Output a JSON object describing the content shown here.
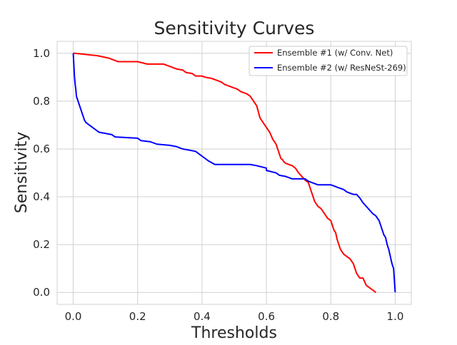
{
  "chart_data": {
    "type": "line",
    "title": "Sensitivity Curves",
    "xlabel": "Thresholds",
    "ylabel": "Sensitivity",
    "xlim": [
      -0.05,
      1.05
    ],
    "ylim": [
      -0.05,
      1.05
    ],
    "xticks": [
      0.0,
      0.2,
      0.4,
      0.6,
      0.8,
      1.0
    ],
    "xtick_labels": [
      "0.0",
      "0.2",
      "0.4",
      "0.6",
      "0.8",
      "1.0"
    ],
    "yticks": [
      0.0,
      0.2,
      0.4,
      0.6,
      0.8,
      1.0
    ],
    "ytick_labels": [
      "0.0",
      "0.2",
      "0.4",
      "0.6",
      "0.8",
      "1.0"
    ],
    "grid": true,
    "legend_position": "top-right",
    "series": [
      {
        "name": "Ensemble #1 (w/ Conv. Net)",
        "color": "#ff0000",
        "x": [
          0.0,
          0.005,
          0.075,
          0.11,
          0.14,
          0.2,
          0.23,
          0.25,
          0.28,
          0.3,
          0.32,
          0.34,
          0.35,
          0.37,
          0.38,
          0.4,
          0.41,
          0.43,
          0.44,
          0.46,
          0.47,
          0.48,
          0.5,
          0.51,
          0.52,
          0.54,
          0.55,
          0.56,
          0.57,
          0.58,
          0.59,
          0.6,
          0.61,
          0.62,
          0.63,
          0.635,
          0.64,
          0.645,
          0.65,
          0.655,
          0.66,
          0.67,
          0.68,
          0.69,
          0.7,
          0.71,
          0.72,
          0.73,
          0.735,
          0.74,
          0.745,
          0.75,
          0.755,
          0.76,
          0.77,
          0.78,
          0.79,
          0.8,
          0.805,
          0.81,
          0.815,
          0.82,
          0.825,
          0.83,
          0.835,
          0.84,
          0.85,
          0.86,
          0.87,
          0.875,
          0.88,
          0.89,
          0.9,
          0.91,
          0.92,
          0.93,
          0.94
        ],
        "y": [
          1.0,
          1.0,
          0.99,
          0.98,
          0.965,
          0.965,
          0.955,
          0.955,
          0.955,
          0.945,
          0.935,
          0.93,
          0.92,
          0.915,
          0.905,
          0.905,
          0.9,
          0.895,
          0.89,
          0.88,
          0.87,
          0.865,
          0.855,
          0.85,
          0.84,
          0.83,
          0.82,
          0.8,
          0.78,
          0.73,
          0.71,
          0.69,
          0.67,
          0.64,
          0.62,
          0.6,
          0.58,
          0.56,
          0.555,
          0.545,
          0.54,
          0.535,
          0.53,
          0.52,
          0.5,
          0.485,
          0.47,
          0.46,
          0.44,
          0.42,
          0.4,
          0.38,
          0.37,
          0.36,
          0.35,
          0.33,
          0.31,
          0.3,
          0.28,
          0.26,
          0.25,
          0.22,
          0.2,
          0.18,
          0.17,
          0.16,
          0.15,
          0.14,
          0.12,
          0.1,
          0.08,
          0.06,
          0.06,
          0.03,
          0.02,
          0.01,
          0.0
        ]
      },
      {
        "name": "Ensemble #2 (w/ ResNeSt-269)",
        "color": "#0000ff",
        "x": [
          0.0,
          0.002,
          0.004,
          0.006,
          0.008,
          0.01,
          0.015,
          0.02,
          0.025,
          0.03,
          0.035,
          0.04,
          0.05,
          0.06,
          0.07,
          0.08,
          0.1,
          0.12,
          0.13,
          0.2,
          0.21,
          0.24,
          0.26,
          0.3,
          0.32,
          0.34,
          0.36,
          0.38,
          0.39,
          0.4,
          0.41,
          0.42,
          0.44,
          0.55,
          0.57,
          0.6,
          0.6,
          0.63,
          0.64,
          0.66,
          0.68,
          0.72,
          0.73,
          0.75,
          0.76,
          0.8,
          0.81,
          0.82,
          0.84,
          0.85,
          0.86,
          0.87,
          0.88,
          0.89,
          0.9,
          0.91,
          0.92,
          0.93,
          0.94,
          0.95,
          0.96,
          0.965,
          0.97,
          0.975,
          0.98,
          0.985,
          0.99,
          0.995,
          1.0
        ],
        "y": [
          1.0,
          0.95,
          0.9,
          0.87,
          0.85,
          0.82,
          0.8,
          0.78,
          0.76,
          0.74,
          0.72,
          0.71,
          0.7,
          0.69,
          0.68,
          0.67,
          0.665,
          0.66,
          0.65,
          0.645,
          0.635,
          0.63,
          0.62,
          0.615,
          0.61,
          0.6,
          0.595,
          0.59,
          0.58,
          0.57,
          0.56,
          0.55,
          0.535,
          0.535,
          0.53,
          0.52,
          0.51,
          0.5,
          0.49,
          0.485,
          0.475,
          0.475,
          0.465,
          0.455,
          0.45,
          0.45,
          0.445,
          0.44,
          0.43,
          0.42,
          0.415,
          0.41,
          0.41,
          0.395,
          0.375,
          0.36,
          0.345,
          0.33,
          0.32,
          0.3,
          0.26,
          0.24,
          0.23,
          0.2,
          0.18,
          0.15,
          0.12,
          0.1,
          0.0
        ]
      }
    ]
  }
}
